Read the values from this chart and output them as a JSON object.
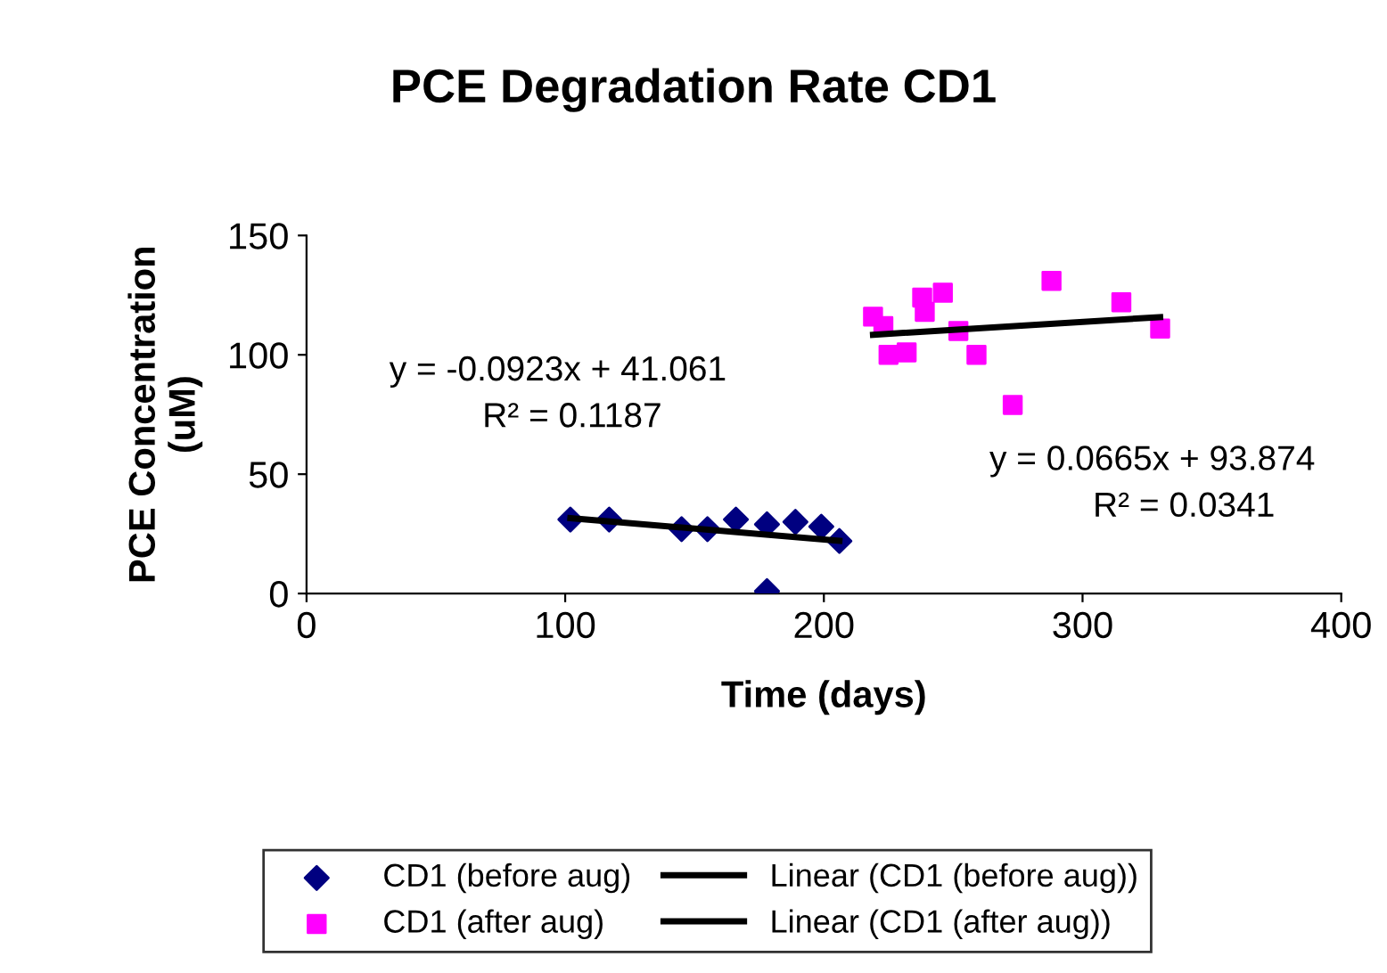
{
  "chart_data": {
    "type": "scatter",
    "title": "PCE Degradation Rate CD1",
    "xlabel": "Time (days)",
    "ylabel": "PCE Concentration\n(uM)",
    "xlim": [
      0,
      400
    ],
    "xticks": [
      0,
      100,
      200,
      300,
      400
    ],
    "ylim": [
      0,
      150
    ],
    "yticks": [
      0,
      50,
      100,
      150
    ],
    "grid": false,
    "legend": "bottom",
    "series": [
      {
        "name": "CD1 (before aug)",
        "color": "#000080",
        "marker": "diamond",
        "x": [
          102,
          117,
          145,
          155,
          166,
          178,
          178,
          189,
          199,
          206
        ],
        "values": [
          31,
          31,
          27,
          27,
          31,
          29,
          1,
          30,
          28,
          22
        ]
      },
      {
        "name": "CD1 (after aug)",
        "color": "#ff00ff",
        "marker": "square",
        "x": [
          219,
          223,
          225,
          232,
          238,
          239,
          246,
          252,
          259,
          273,
          288,
          315,
          330
        ],
        "values": [
          116,
          112,
          100,
          101,
          124,
          118,
          126,
          110,
          100,
          79,
          131,
          122,
          111
        ]
      },
      {
        "name": "Linear (CD1 (before aug))",
        "type": "line",
        "color": "#000000",
        "marker": "none",
        "x": [
          102,
          206
        ],
        "values": [
          31.6,
          22.1
        ]
      },
      {
        "name": "Linear (CD1 (after aug))",
        "type": "line",
        "color": "#000000",
        "marker": "none",
        "x": [
          219,
          330
        ],
        "values": [
          108.4,
          115.8
        ]
      }
    ],
    "annotations": [
      "y = -0.0923x + 41.061",
      "R² = 0.1187",
      "y = 0.0665x + 93.874",
      "R² = 0.0341"
    ]
  }
}
